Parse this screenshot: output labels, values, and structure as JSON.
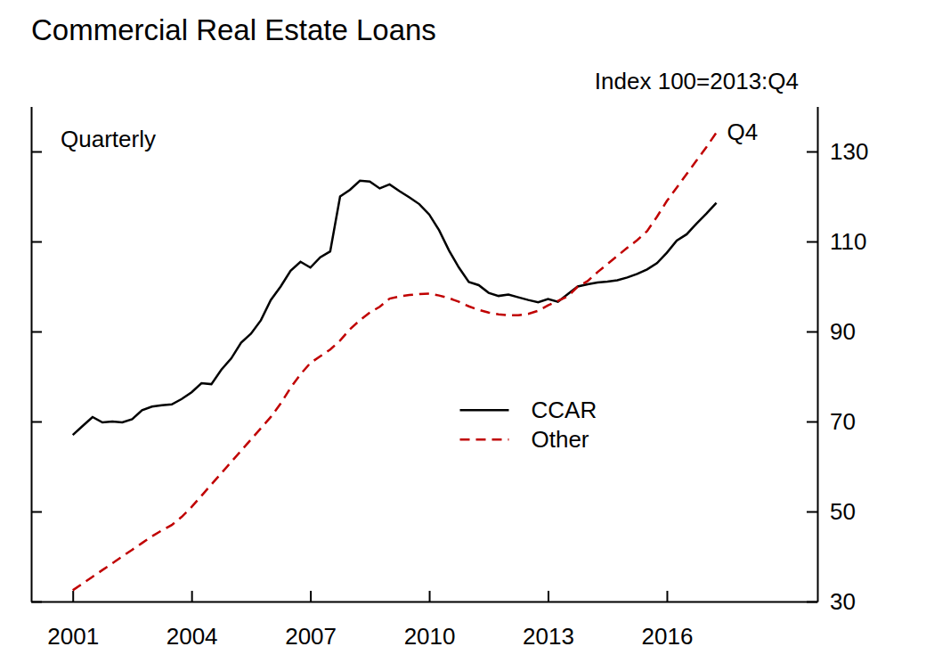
{
  "chart_data": {
    "type": "line",
    "title": "Commercial Real Estate Loans",
    "annotations": [
      "Index 100=2013:Q4",
      "Quarterly",
      "Q4"
    ],
    "x": [
      2001.0,
      2001.25,
      2001.5,
      2001.75,
      2002.0,
      2002.25,
      2002.5,
      2002.75,
      2003.0,
      2003.25,
      2003.5,
      2003.75,
      2004.0,
      2004.25,
      2004.5,
      2004.75,
      2005.0,
      2005.25,
      2005.5,
      2005.75,
      2006.0,
      2006.25,
      2006.5,
      2006.75,
      2007.0,
      2007.25,
      2007.5,
      2007.75,
      2008.0,
      2008.25,
      2008.5,
      2008.75,
      2009.0,
      2009.25,
      2009.5,
      2009.75,
      2010.0,
      2010.25,
      2010.5,
      2010.75,
      2011.0,
      2011.25,
      2011.5,
      2011.75,
      2012.0,
      2012.25,
      2012.5,
      2012.75,
      2013.0,
      2013.25,
      2013.5,
      2013.75,
      2014.0,
      2014.25,
      2014.5,
      2014.75,
      2015.0,
      2015.25,
      2015.5,
      2015.75,
      2016.0,
      2016.25,
      2016.5,
      2016.75,
      2017.0,
      2017.25
    ],
    "series": [
      {
        "name": "CCAR",
        "color": "#000000",
        "line_style": "solid",
        "values": [
          67,
          69,
          71,
          69.8,
          70,
          69.8,
          70.5,
          72.5,
          73.3,
          73.6,
          73.8,
          75,
          76.5,
          78.5,
          78.3,
          81.5,
          84,
          87.5,
          89.5,
          92.5,
          97,
          100,
          103.5,
          105.5,
          104.2,
          106.5,
          107.8,
          120,
          121.5,
          123.5,
          123.3,
          121.8,
          122.7,
          121.2,
          119.8,
          118.3,
          116,
          112.5,
          108,
          104.2,
          101,
          100.3,
          98.6,
          97.9,
          98.2,
          97.6,
          97,
          96.5,
          97.2,
          96.6,
          98.3,
          100,
          100.5,
          100.9,
          101.1,
          101.4,
          102,
          102.8,
          103.8,
          105.2,
          107.5,
          110.2,
          111.6,
          114,
          116.2,
          118.6
        ]
      },
      {
        "name": "Other",
        "color": "#c00000",
        "line_style": "dashed",
        "values": [
          32.5,
          34,
          35.5,
          37,
          38.5,
          40,
          41.5,
          43,
          44.5,
          45.8,
          47,
          48.8,
          51,
          53.5,
          56,
          58.5,
          61,
          63.5,
          66,
          68.5,
          71,
          74,
          77.5,
          80.5,
          83,
          84.5,
          86,
          88,
          90.5,
          92.5,
          94.2,
          95.5,
          97.3,
          97.8,
          98.1,
          98.3,
          98.4,
          98,
          97.4,
          96.6,
          95.6,
          94.8,
          94.2,
          93.8,
          93.6,
          93.6,
          93.9,
          94.6,
          95.8,
          96.8,
          97.8,
          100,
          101.2,
          103.2,
          105,
          106.8,
          108.6,
          110.3,
          112.3,
          115.5,
          119,
          122,
          125,
          128,
          131,
          134.2
        ]
      }
    ],
    "xlim": [
      1999.95,
      2019.8
    ],
    "xticks": [
      2001,
      2004,
      2007,
      2010,
      2013,
      2016
    ],
    "ylim": [
      30,
      140
    ],
    "yticks": [
      30,
      50,
      70,
      90,
      110,
      130
    ],
    "legend": "center",
    "grid": false
  }
}
